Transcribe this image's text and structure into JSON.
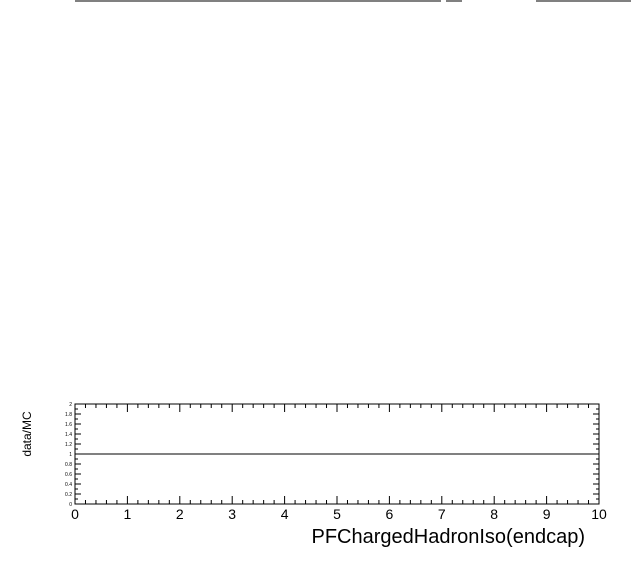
{
  "top_fragments": {
    "stroke_color": "#000000"
  },
  "chart_data": {
    "type": "line",
    "title": "",
    "xlabel": "PFChargedHadronIso(endcap)",
    "ylabel": "data/MC",
    "xlim": [
      0,
      10
    ],
    "ylim": [
      0,
      2
    ],
    "x_major_ticks": [
      0,
      1,
      2,
      3,
      4,
      5,
      6,
      7,
      8,
      9,
      10
    ],
    "x_tick_labels": [
      "0",
      "1",
      "2",
      "3",
      "4",
      "5",
      "6",
      "7",
      "8",
      "9",
      "10"
    ],
    "y_major_ticks": [
      0,
      0.2,
      0.4,
      0.6,
      0.8,
      1,
      1.2,
      1.4,
      1.6,
      1.8,
      2
    ],
    "y_tick_labels": [
      "0",
      "0.2",
      "0.4",
      "0.6",
      "0.8",
      "1",
      "1.2",
      "1.4",
      "1.6",
      "1.8",
      "2"
    ],
    "grid": false,
    "series": [
      {
        "style": "line",
        "x": [
          0,
          10
        ],
        "y": [
          1,
          1
        ],
        "color": "#000000"
      }
    ]
  }
}
